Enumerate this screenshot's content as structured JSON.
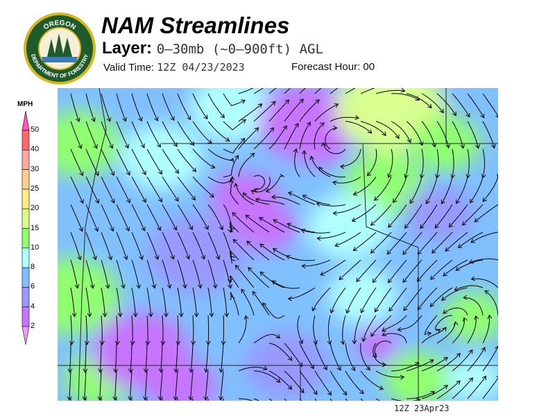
{
  "header": {
    "title": "NAM Streamlines",
    "layer_label": "Layer:",
    "layer_value": "0–30mb (~0–900ft) AGL",
    "valid_label": "Valid Time:",
    "valid_value": "12Z 04/23/2023",
    "forecast_label": "Forecast Hour:",
    "forecast_value": "00"
  },
  "logo": {
    "top_text": "OREGON",
    "bottom_text": "DEPARTMENT OF FORESTRY"
  },
  "colorbar": {
    "unit": "MPH",
    "ticks": [
      "50",
      "40",
      "30",
      "25",
      "20",
      "15",
      "10",
      "8",
      "6",
      "4",
      "2"
    ],
    "colors": [
      "#ff6666",
      "#ffaaa0",
      "#ffd090",
      "#ffee88",
      "#d8ff90",
      "#90ff70",
      "#b0ffff",
      "#80c0ff",
      "#9999ff",
      "#c774ff"
    ],
    "over_color": "#ff55bb",
    "under_color": "#ee99ff"
  },
  "footer": {
    "timestamp": "12Z 23Apr23"
  }
}
